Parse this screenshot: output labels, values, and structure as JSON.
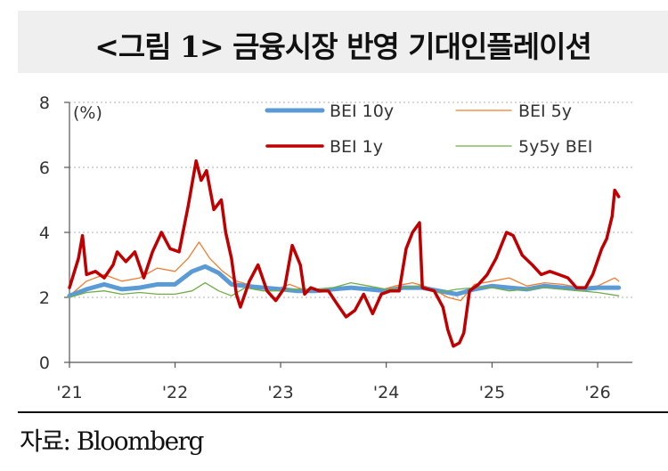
{
  "title": "<그림 1> 금융시장 반영 기대인플레이션",
  "source": "자료: Bloomberg",
  "chart_data": {
    "type": "line",
    "y_unit_label": "(%)",
    "ylim": [
      0,
      8
    ],
    "yticks": [
      0,
      2,
      4,
      6,
      8
    ],
    "xlim": [
      "2021-01-01",
      "2026-05-01"
    ],
    "xticks": [
      {
        "date": "2021-01-01",
        "label": "'21"
      },
      {
        "date": "2022-01-01",
        "label": "'22"
      },
      {
        "date": "2023-01-01",
        "label": "'23"
      },
      {
        "date": "2024-01-01",
        "label": "'24"
      },
      {
        "date": "2025-01-01",
        "label": "'25"
      },
      {
        "date": "2026-01-01",
        "label": "'26"
      }
    ],
    "gridlines": "horizontal-dotted",
    "legend_placement": "top-right",
    "series": [
      {
        "name": "BEI 10y",
        "color": "#5b9bd5",
        "width": 5,
        "points": [
          [
            "2021-01-01",
            2.05
          ],
          [
            "2021-03-01",
            2.25
          ],
          [
            "2021-05-01",
            2.4
          ],
          [
            "2021-07-01",
            2.25
          ],
          [
            "2021-09-01",
            2.3
          ],
          [
            "2021-11-01",
            2.4
          ],
          [
            "2022-01-01",
            2.4
          ],
          [
            "2022-03-01",
            2.8
          ],
          [
            "2022-04-15",
            2.95
          ],
          [
            "2022-06-01",
            2.75
          ],
          [
            "2022-07-15",
            2.4
          ],
          [
            "2022-09-01",
            2.35
          ],
          [
            "2022-11-01",
            2.3
          ],
          [
            "2023-01-01",
            2.25
          ],
          [
            "2023-03-01",
            2.2
          ],
          [
            "2023-05-01",
            2.2
          ],
          [
            "2023-07-01",
            2.25
          ],
          [
            "2023-09-01",
            2.3
          ],
          [
            "2023-11-01",
            2.25
          ],
          [
            "2024-01-01",
            2.2
          ],
          [
            "2024-03-01",
            2.3
          ],
          [
            "2024-05-01",
            2.3
          ],
          [
            "2024-07-01",
            2.2
          ],
          [
            "2024-09-01",
            2.1
          ],
          [
            "2024-11-01",
            2.25
          ],
          [
            "2025-01-01",
            2.35
          ],
          [
            "2025-03-01",
            2.3
          ],
          [
            "2025-05-01",
            2.25
          ],
          [
            "2025-07-01",
            2.35
          ],
          [
            "2025-09-01",
            2.3
          ],
          [
            "2025-11-01",
            2.25
          ],
          [
            "2026-01-01",
            2.3
          ],
          [
            "2026-03-15",
            2.3
          ]
        ]
      },
      {
        "name": "BEI 5y",
        "color": "#ed7d31",
        "width": 1.3,
        "points": [
          [
            "2021-01-01",
            2.05
          ],
          [
            "2021-03-01",
            2.5
          ],
          [
            "2021-05-01",
            2.7
          ],
          [
            "2021-07-01",
            2.5
          ],
          [
            "2021-09-01",
            2.6
          ],
          [
            "2021-11-01",
            2.9
          ],
          [
            "2022-01-01",
            2.8
          ],
          [
            "2022-02-15",
            3.2
          ],
          [
            "2022-03-25",
            3.7
          ],
          [
            "2022-05-01",
            3.2
          ],
          [
            "2022-06-15",
            2.8
          ],
          [
            "2022-08-01",
            2.5
          ],
          [
            "2022-10-01",
            2.35
          ],
          [
            "2022-12-01",
            2.2
          ],
          [
            "2023-02-01",
            2.4
          ],
          [
            "2023-04-01",
            2.2
          ],
          [
            "2023-06-01",
            2.2
          ],
          [
            "2023-08-01",
            2.3
          ],
          [
            "2023-10-01",
            2.3
          ],
          [
            "2023-12-01",
            2.2
          ],
          [
            "2024-02-01",
            2.35
          ],
          [
            "2024-04-01",
            2.45
          ],
          [
            "2024-06-01",
            2.3
          ],
          [
            "2024-08-01",
            2.0
          ],
          [
            "2024-09-15",
            1.9
          ],
          [
            "2024-11-01",
            2.4
          ],
          [
            "2025-01-01",
            2.5
          ],
          [
            "2025-03-01",
            2.6
          ],
          [
            "2025-05-01",
            2.35
          ],
          [
            "2025-07-01",
            2.45
          ],
          [
            "2025-09-01",
            2.4
          ],
          [
            "2025-11-01",
            2.3
          ],
          [
            "2026-01-01",
            2.35
          ],
          [
            "2026-03-01",
            2.6
          ],
          [
            "2026-03-15",
            2.5
          ]
        ]
      },
      {
        "name": "BEI 1y",
        "color": "#c00000",
        "width": 3.5,
        "points": [
          [
            "2021-01-01",
            2.3
          ],
          [
            "2021-02-01",
            3.2
          ],
          [
            "2021-02-15",
            3.9
          ],
          [
            "2021-03-01",
            2.7
          ],
          [
            "2021-04-01",
            2.8
          ],
          [
            "2021-05-01",
            2.6
          ],
          [
            "2021-06-01",
            3.0
          ],
          [
            "2021-06-15",
            3.4
          ],
          [
            "2021-07-15",
            3.1
          ],
          [
            "2021-08-15",
            3.4
          ],
          [
            "2021-09-15",
            2.6
          ],
          [
            "2021-10-15",
            3.4
          ],
          [
            "2021-11-15",
            4.0
          ],
          [
            "2021-12-15",
            3.5
          ],
          [
            "2022-01-15",
            3.4
          ],
          [
            "2022-02-15",
            4.8
          ],
          [
            "2022-03-15",
            6.2
          ],
          [
            "2022-04-01",
            5.6
          ],
          [
            "2022-04-20",
            5.9
          ],
          [
            "2022-05-15",
            4.7
          ],
          [
            "2022-06-10",
            5.0
          ],
          [
            "2022-06-25",
            4.0
          ],
          [
            "2022-07-15",
            3.2
          ],
          [
            "2022-08-01",
            2.1
          ],
          [
            "2022-08-15",
            1.7
          ],
          [
            "2022-09-15",
            2.5
          ],
          [
            "2022-10-15",
            3.0
          ],
          [
            "2022-11-15",
            2.2
          ],
          [
            "2022-12-15",
            1.9
          ],
          [
            "2023-01-15",
            2.3
          ],
          [
            "2023-02-10",
            3.6
          ],
          [
            "2023-03-10",
            3.0
          ],
          [
            "2023-03-25",
            2.1
          ],
          [
            "2023-04-15",
            2.3
          ],
          [
            "2023-05-15",
            2.2
          ],
          [
            "2023-06-15",
            2.2
          ],
          [
            "2023-07-15",
            1.8
          ],
          [
            "2023-08-15",
            1.4
          ],
          [
            "2023-09-15",
            1.6
          ],
          [
            "2023-10-15",
            2.1
          ],
          [
            "2023-11-15",
            1.5
          ],
          [
            "2023-12-15",
            2.1
          ],
          [
            "2024-01-15",
            2.2
          ],
          [
            "2024-02-15",
            2.2
          ],
          [
            "2024-03-10",
            3.5
          ],
          [
            "2024-04-01",
            4.0
          ],
          [
            "2024-04-25",
            4.3
          ],
          [
            "2024-05-05",
            2.3
          ],
          [
            "2024-06-15",
            2.2
          ],
          [
            "2024-07-15",
            1.7
          ],
          [
            "2024-08-01",
            1.0
          ],
          [
            "2024-08-20",
            0.5
          ],
          [
            "2024-09-10",
            0.6
          ],
          [
            "2024-09-25",
            0.9
          ],
          [
            "2024-10-15",
            2.2
          ],
          [
            "2024-11-15",
            2.4
          ],
          [
            "2024-12-15",
            2.7
          ],
          [
            "2025-01-15",
            3.2
          ],
          [
            "2025-02-20",
            4.0
          ],
          [
            "2025-03-15",
            3.9
          ],
          [
            "2025-04-15",
            3.3
          ],
          [
            "2025-05-20",
            3.0
          ],
          [
            "2025-06-20",
            2.7
          ],
          [
            "2025-07-20",
            2.8
          ],
          [
            "2025-08-20",
            2.7
          ],
          [
            "2025-09-20",
            2.6
          ],
          [
            "2025-10-20",
            2.3
          ],
          [
            "2025-11-20",
            2.3
          ],
          [
            "2025-12-15",
            2.7
          ],
          [
            "2026-01-15",
            3.5
          ],
          [
            "2026-02-01",
            3.8
          ],
          [
            "2026-02-20",
            4.5
          ],
          [
            "2026-03-01",
            5.3
          ],
          [
            "2026-03-15",
            5.1
          ]
        ]
      },
      {
        "name": "5y5y BEI",
        "color": "#70ad47",
        "width": 1.3,
        "points": [
          [
            "2021-01-01",
            2.0
          ],
          [
            "2021-03-01",
            2.15
          ],
          [
            "2021-05-01",
            2.2
          ],
          [
            "2021-07-01",
            2.1
          ],
          [
            "2021-09-01",
            2.15
          ],
          [
            "2021-11-01",
            2.1
          ],
          [
            "2022-01-01",
            2.1
          ],
          [
            "2022-03-01",
            2.2
          ],
          [
            "2022-04-15",
            2.45
          ],
          [
            "2022-06-01",
            2.2
          ],
          [
            "2022-07-15",
            2.05
          ],
          [
            "2022-09-01",
            2.3
          ],
          [
            "2022-11-01",
            2.2
          ],
          [
            "2023-01-01",
            2.2
          ],
          [
            "2023-03-01",
            2.25
          ],
          [
            "2023-05-01",
            2.25
          ],
          [
            "2023-07-01",
            2.3
          ],
          [
            "2023-09-01",
            2.45
          ],
          [
            "2023-11-01",
            2.35
          ],
          [
            "2024-01-01",
            2.25
          ],
          [
            "2024-03-01",
            2.3
          ],
          [
            "2024-05-01",
            2.35
          ],
          [
            "2024-07-01",
            2.15
          ],
          [
            "2024-09-01",
            2.25
          ],
          [
            "2024-11-01",
            2.3
          ],
          [
            "2025-01-01",
            2.3
          ],
          [
            "2025-03-01",
            2.2
          ],
          [
            "2025-05-01",
            2.25
          ],
          [
            "2025-07-01",
            2.3
          ],
          [
            "2025-09-01",
            2.25
          ],
          [
            "2025-11-01",
            2.2
          ],
          [
            "2026-01-01",
            2.15
          ],
          [
            "2026-03-15",
            2.05
          ]
        ]
      }
    ]
  }
}
